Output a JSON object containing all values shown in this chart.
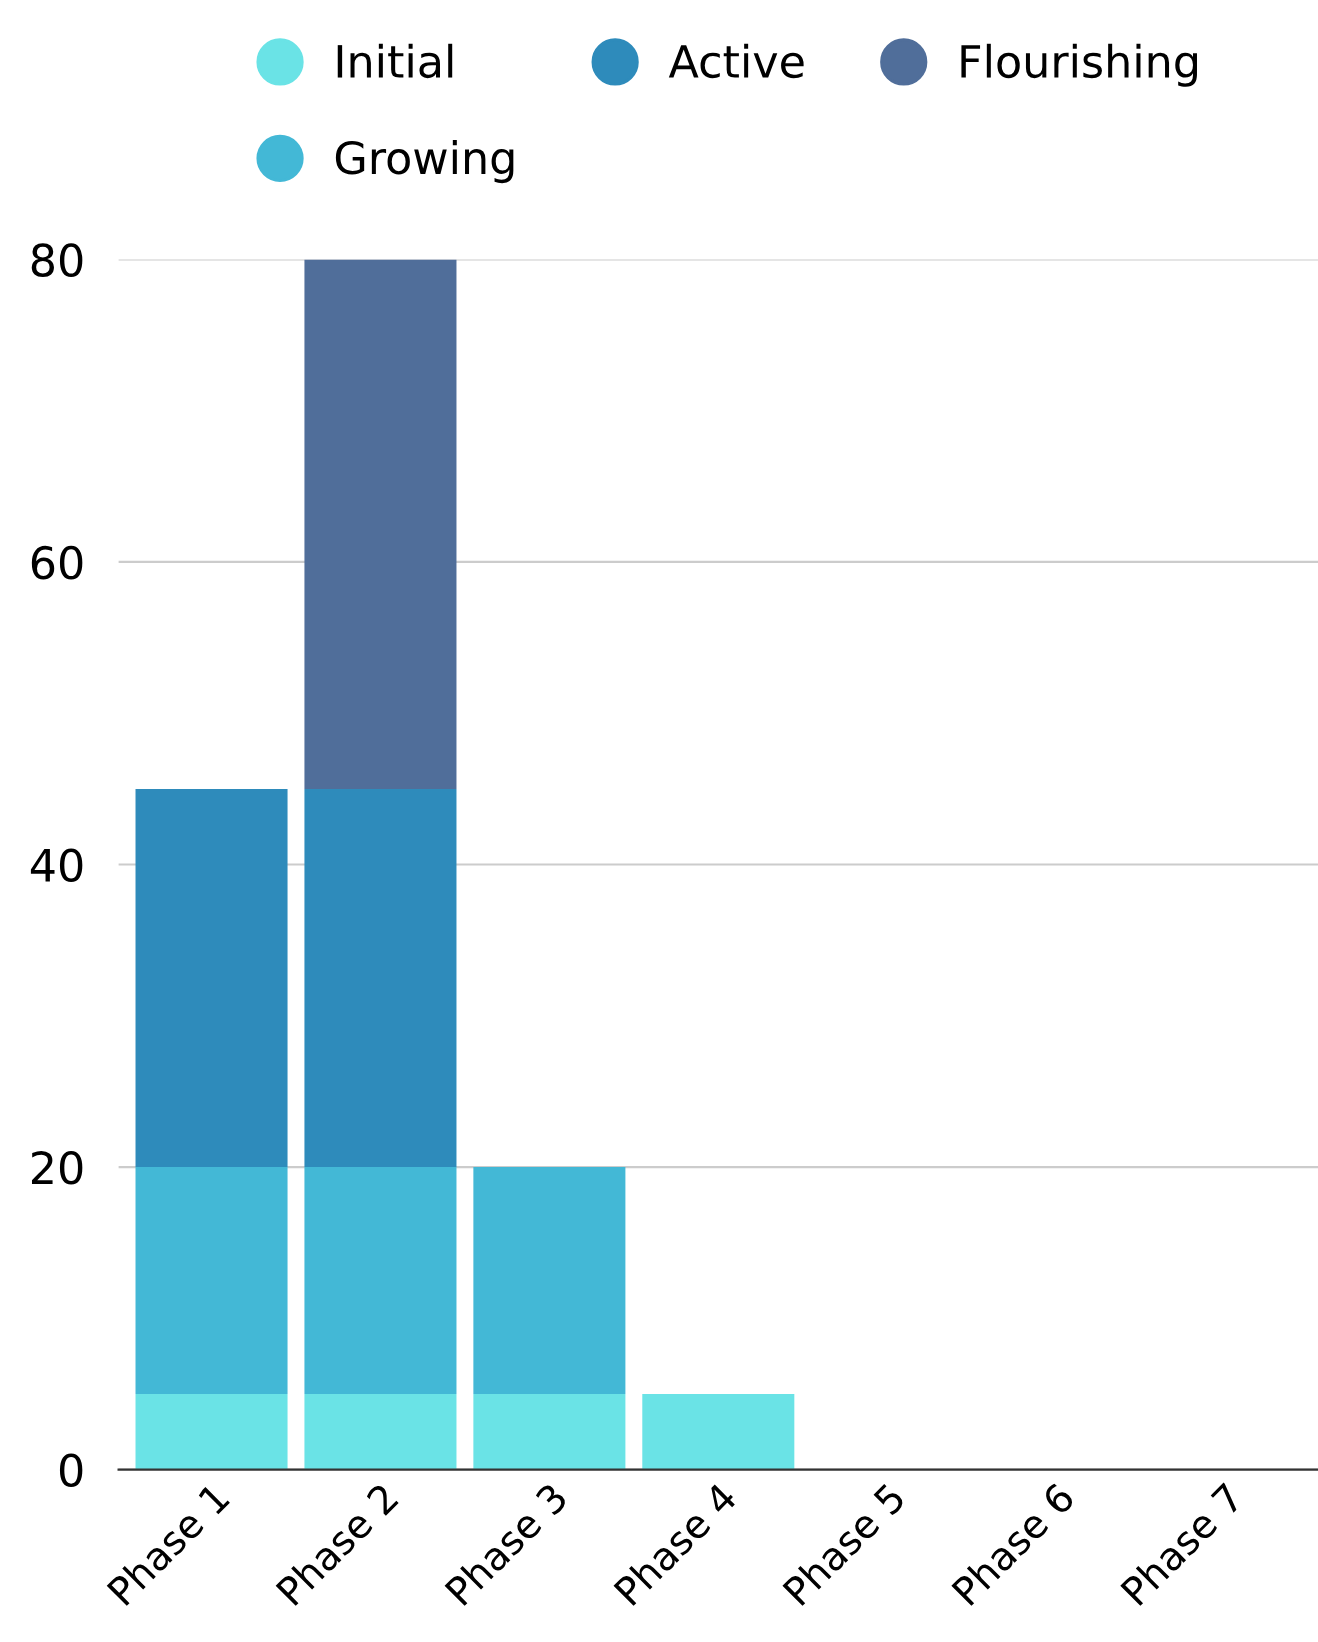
{
  "chart_data": {
    "type": "bar",
    "stacked": true,
    "categories": [
      "Phase 1",
      "Phase 2",
      "Phase 3",
      "Phase 4",
      "Phase 5",
      "Phase 6",
      "Phase 7"
    ],
    "series": [
      {
        "name": "Initial",
        "color": "#6ae3e6",
        "values": [
          5,
          5,
          5,
          5,
          0,
          0,
          0
        ]
      },
      {
        "name": "Growing",
        "color": "#43b8d6",
        "values": [
          15,
          15,
          15,
          0,
          0,
          0,
          0
        ]
      },
      {
        "name": "Active",
        "color": "#2e8bbb",
        "values": [
          25,
          25,
          0,
          0,
          0,
          0,
          0
        ]
      },
      {
        "name": "Flourishing",
        "color": "#506e9a",
        "values": [
          0,
          35,
          0,
          0,
          0,
          0,
          0
        ]
      }
    ],
    "ylim": [
      0,
      80
    ],
    "yticks": [
      0,
      20,
      40,
      60,
      80
    ],
    "grid": "y",
    "legend": "top"
  }
}
